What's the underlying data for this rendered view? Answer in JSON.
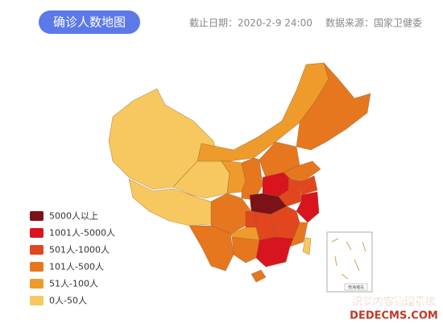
{
  "header": {
    "title": "确诊人数地图",
    "date": "截止日期：2020-2-9 24:00",
    "source": "数据来源：国家卫健委"
  },
  "legend": [
    {
      "label": "5000人以上",
      "color": "#7b1218"
    },
    {
      "label": "1001人-5000人",
      "color": "#d8141e"
    },
    {
      "label": "501人-1000人",
      "color": "#e2461f"
    },
    {
      "label": "101人-500人",
      "color": "#e6771f"
    },
    {
      "label": "51人-100人",
      "color": "#ee9b2b"
    },
    {
      "label": "0人-50人",
      "color": "#f6c85f"
    }
  ],
  "inset": {
    "label": "南海诸岛"
  },
  "watermark": {
    "line1": "织梦内容管理系统",
    "line2": "DEDECMS.COM"
  }
}
